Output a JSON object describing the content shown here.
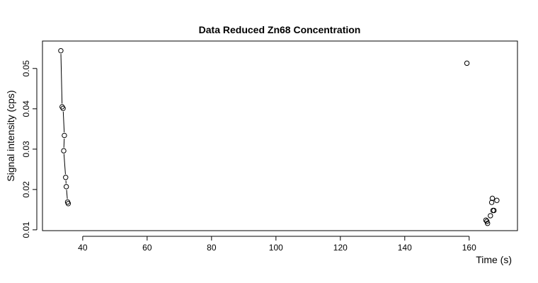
{
  "chart_data": {
    "type": "scatter",
    "title": "Data Reduced Zn68 Concentration",
    "xlabel": "Time (s)",
    "ylabel": "Signal intensity (cps)",
    "xlim": [
      27.5,
      175.0
    ],
    "ylim": [
      0.0098,
      0.0568
    ],
    "xticks": [
      40,
      60,
      80,
      100,
      120,
      140,
      160
    ],
    "yticks": [
      0.01,
      0.02,
      0.03,
      0.04,
      0.05
    ],
    "ytick_labels": [
      "0.01",
      "0.02",
      "0.03",
      "0.04",
      "0.05"
    ],
    "grid": false,
    "legend": "none",
    "series": [
      {
        "marker": "open-circle",
        "line": true,
        "points": [
          {
            "x": 33.2,
            "y": 0.0544
          },
          {
            "x": 33.6,
            "y": 0.0405
          },
          {
            "x": 33.9,
            "y": 0.0401
          },
          {
            "x": 34.3,
            "y": 0.0334
          },
          {
            "x": 34.1,
            "y": 0.0296
          },
          {
            "x": 34.7,
            "y": 0.023
          },
          {
            "x": 34.9,
            "y": 0.0207
          },
          {
            "x": 35.3,
            "y": 0.0169
          },
          {
            "x": 35.5,
            "y": 0.0165
          }
        ]
      },
      {
        "marker": "open-circle",
        "line": false,
        "points": [
          {
            "x": 159.3,
            "y": 0.0513
          },
          {
            "x": 165.2,
            "y": 0.0124
          },
          {
            "x": 165.5,
            "y": 0.0121
          },
          {
            "x": 165.7,
            "y": 0.0116
          },
          {
            "x": 166.6,
            "y": 0.0135
          },
          {
            "x": 167.0,
            "y": 0.0168
          },
          {
            "x": 167.2,
            "y": 0.0178
          },
          {
            "x": 167.4,
            "y": 0.0148
          },
          {
            "x": 167.7,
            "y": 0.0148
          },
          {
            "x": 168.6,
            "y": 0.0173
          }
        ]
      }
    ]
  }
}
